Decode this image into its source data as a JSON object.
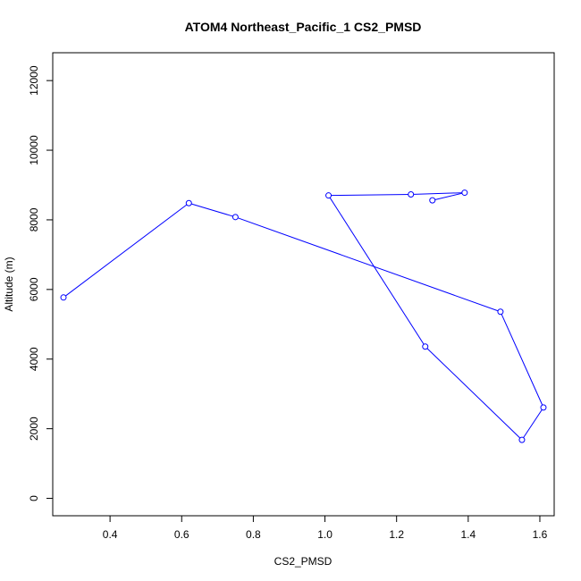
{
  "chart_data": {
    "type": "line",
    "title": "ATOM4 Northeast_Pacific_1 CS2_PMSD",
    "xlabel": "CS2_PMSD",
    "ylabel": "Altitude (m)",
    "xlim": [
      0.24,
      1.64
    ],
    "ylim": [
      -500,
      12800
    ],
    "xticks": [
      0.4,
      0.6,
      0.8,
      1.0,
      1.2,
      1.4,
      1.6
    ],
    "xtick_labels": [
      "0.4",
      "0.6",
      "0.8",
      "1.0",
      "1.2",
      "1.4",
      "1.6"
    ],
    "yticks": [
      0,
      2000,
      4000,
      6000,
      8000,
      10000,
      12000
    ],
    "ytick_labels": [
      "0",
      "2000",
      "4000",
      "6000",
      "8000",
      "10000",
      "12000"
    ],
    "grid": false,
    "series": [
      {
        "color": "#0000ff",
        "marker": "open-circle",
        "points": [
          {
            "x": 1.3,
            "y": 8560
          },
          {
            "x": 1.39,
            "y": 8780
          },
          {
            "x": 1.24,
            "y": 8730
          },
          {
            "x": 1.01,
            "y": 8700
          },
          {
            "x": 1.28,
            "y": 4360
          },
          {
            "x": 1.55,
            "y": 1680
          },
          {
            "x": 1.61,
            "y": 2610
          },
          {
            "x": 1.49,
            "y": 5360
          },
          {
            "x": 0.75,
            "y": 8080
          },
          {
            "x": 0.62,
            "y": 8480
          },
          {
            "x": 0.27,
            "y": 5770
          }
        ]
      }
    ]
  }
}
